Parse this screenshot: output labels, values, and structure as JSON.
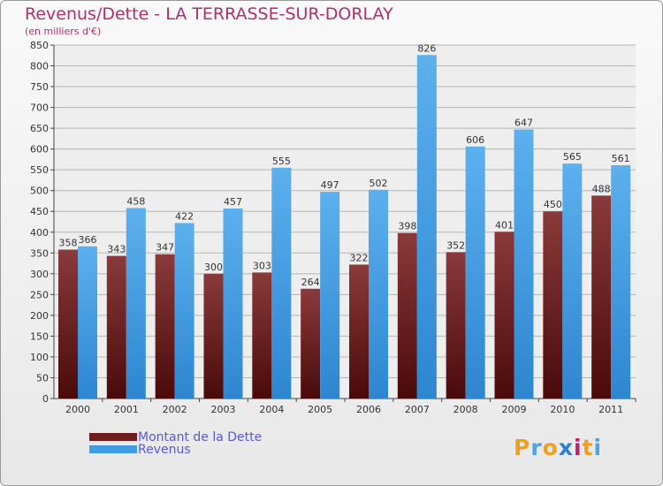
{
  "title": "Revenus/Dette - LA TERRASSE-SUR-DORLAY",
  "subtitle": "(en milliers d'€)",
  "logo": {
    "text": "Proxiti",
    "letters": [
      "P",
      "r",
      "o",
      "x",
      "i",
      "t",
      "i"
    ],
    "colors": [
      "#f0a020",
      "#4fa3e0",
      "#f0a020",
      "#2f7fd0",
      "#c02070",
      "#f0a020",
      "#4fa3e0"
    ]
  },
  "colors": {
    "dette": "#6e1c1c",
    "revenus": "#3f9be2",
    "title": "#b0306a",
    "legend_text": "#5a5ad8"
  },
  "legend": [
    {
      "label": "Montant de la Dette",
      "color": "#6e1c1c"
    },
    {
      "label": "Revenus",
      "color": "#3f9be2"
    }
  ],
  "chart_data": {
    "type": "bar",
    "title": "Revenus/Dette - LA TERRASSE-SUR-DORLAY",
    "subtitle": "(en milliers d'€)",
    "categories": [
      "2000",
      "2001",
      "2002",
      "2003",
      "2004",
      "2005",
      "2006",
      "2007",
      "2008",
      "2009",
      "2010",
      "2011"
    ],
    "series": [
      {
        "name": "Montant de la Dette",
        "color": "#6e1c1c",
        "values": [
          358,
          343,
          347,
          300,
          303,
          264,
          322,
          398,
          352,
          401,
          450,
          488
        ]
      },
      {
        "name": "Revenus",
        "color": "#3f9be2",
        "values": [
          366,
          458,
          422,
          457,
          555,
          497,
          502,
          826,
          606,
          647,
          565,
          561
        ]
      }
    ],
    "ylim": [
      0,
      850
    ],
    "yticks": [
      0,
      50,
      100,
      150,
      200,
      250,
      300,
      350,
      400,
      450,
      500,
      550,
      600,
      650,
      700,
      750,
      800,
      850
    ],
    "grid": true,
    "legend_position": "bottom-left"
  }
}
